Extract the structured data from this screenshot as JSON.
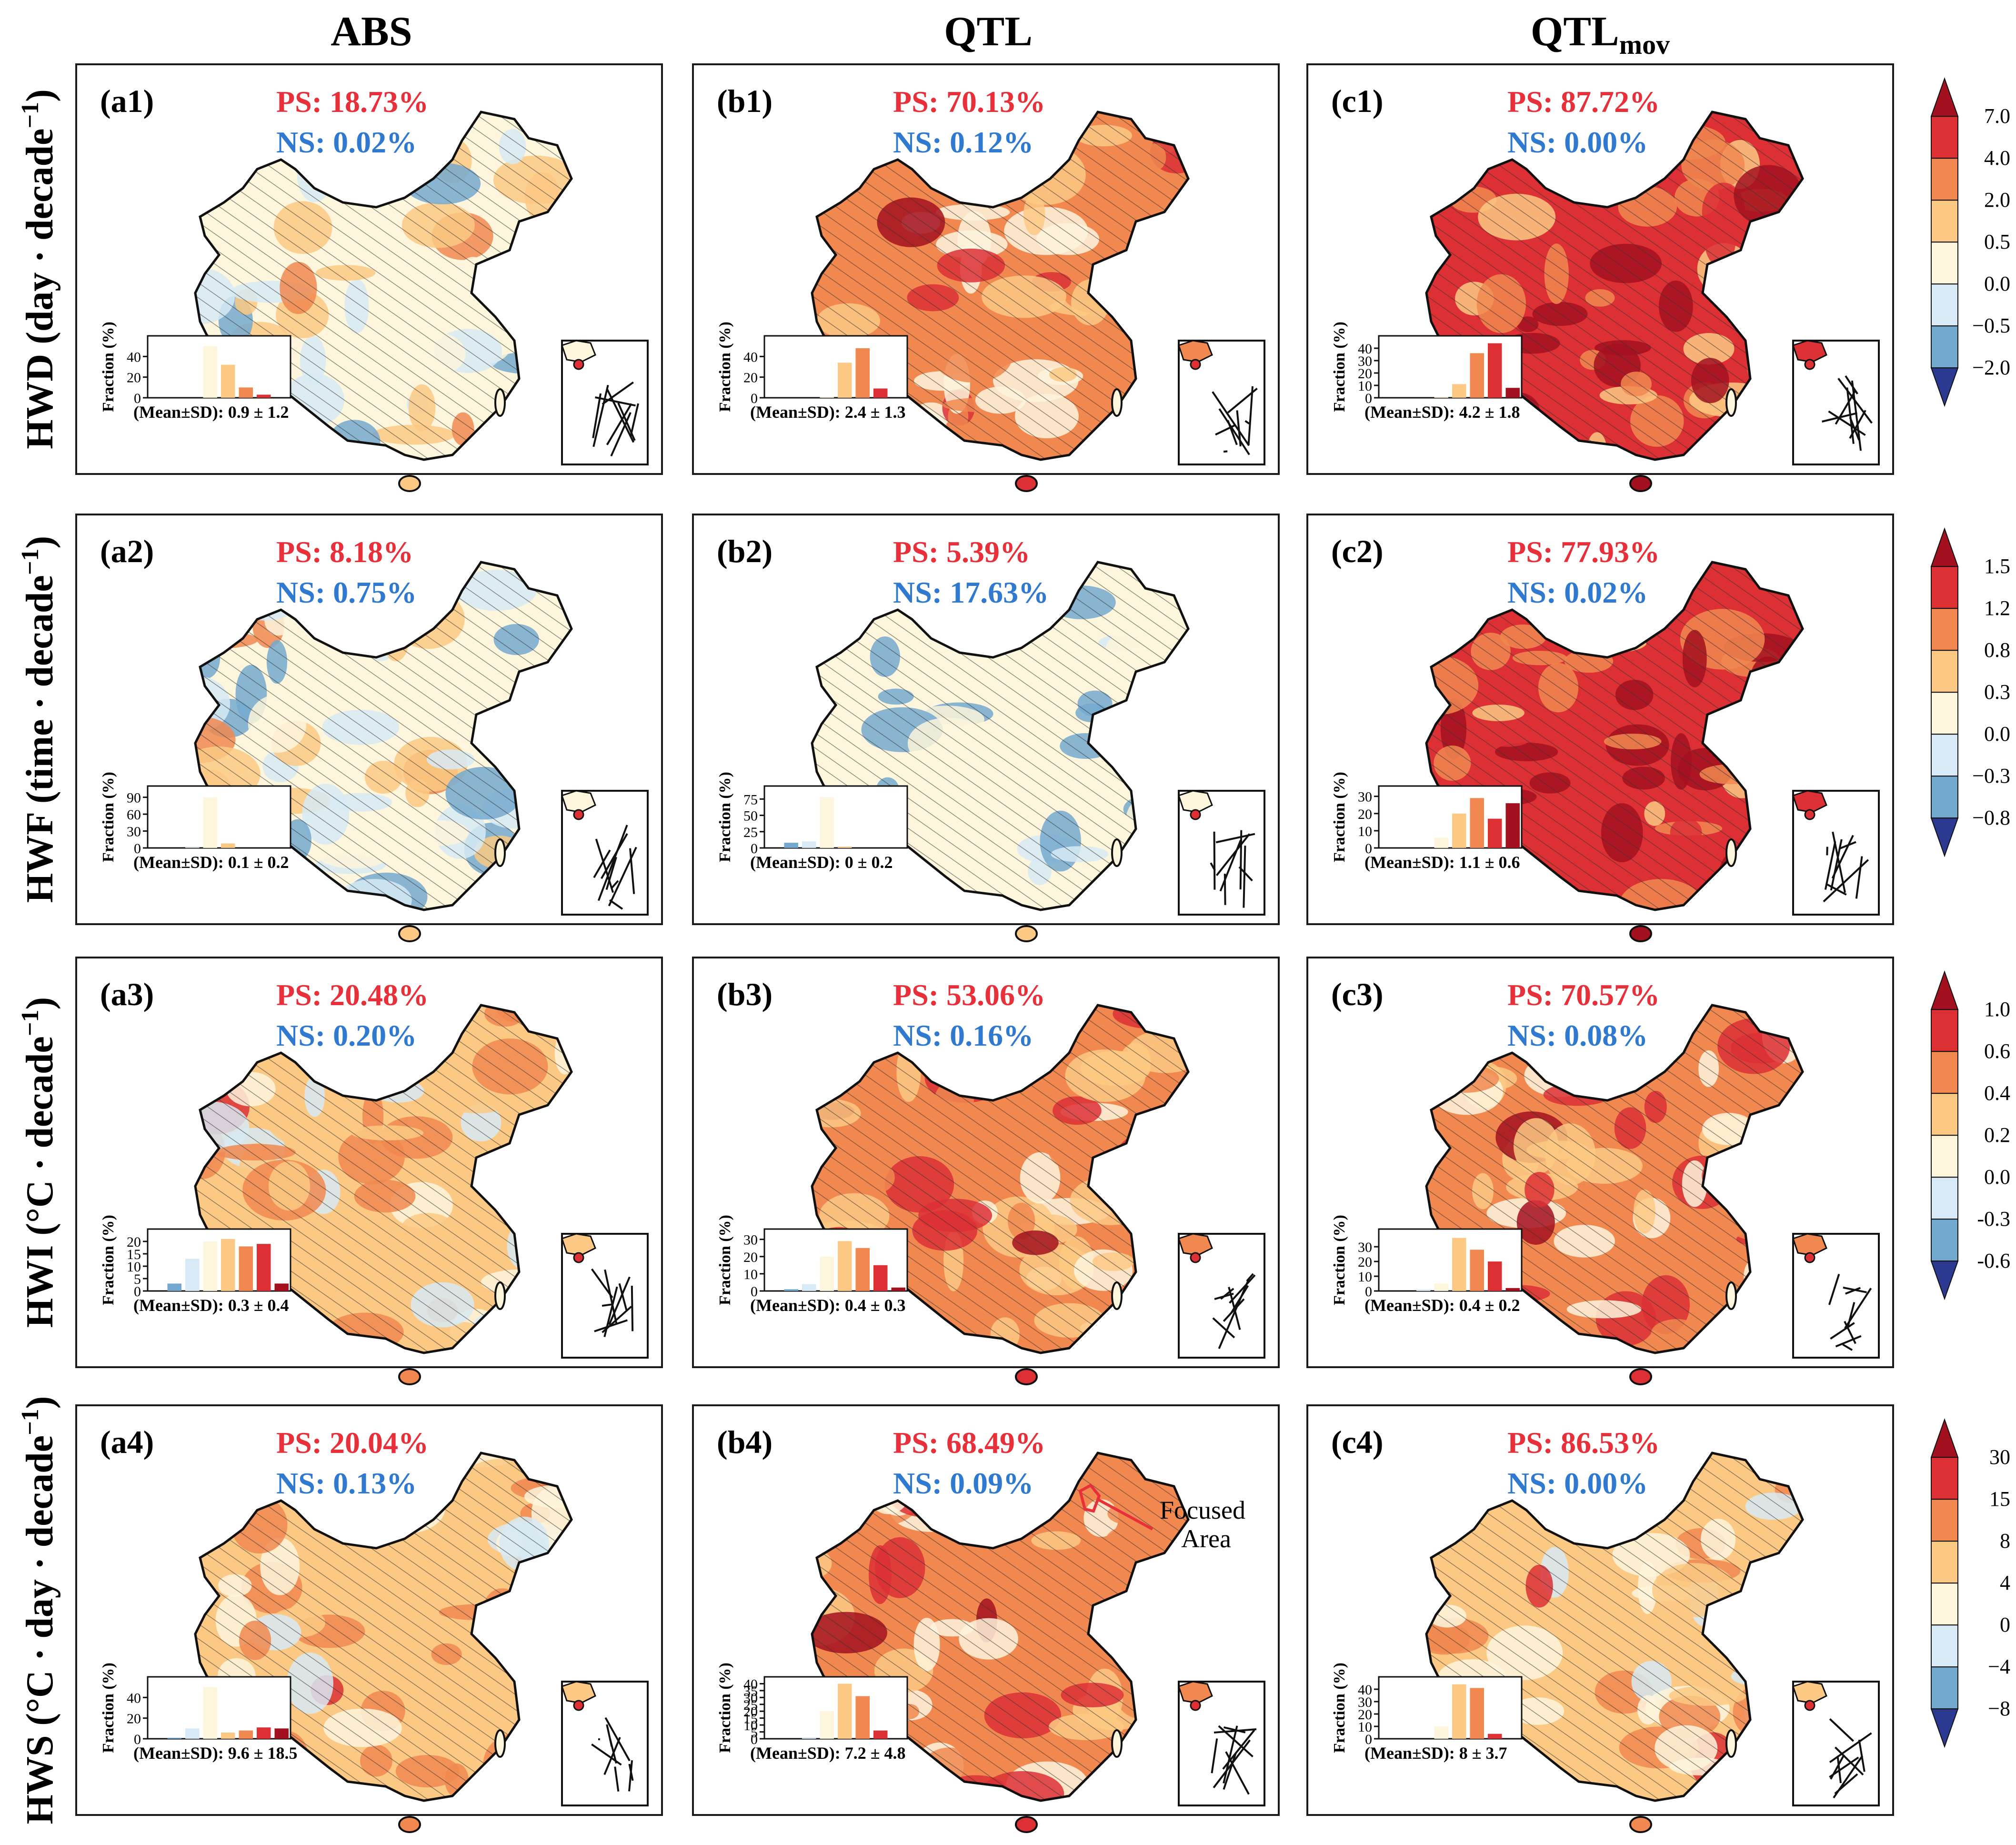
{
  "columns": [
    "ABS",
    "QTL",
    "QTL"
  ],
  "column_subscript": "mov",
  "rows": [
    {
      "prefix": "HWD (day",
      "suffix": ")",
      "unit_tail": " · decade"
    },
    {
      "prefix": "HWF (time",
      "suffix": ")",
      "unit_tail": " · decade"
    },
    {
      "prefix": "HWI (°C",
      "suffix": ")",
      "unit_tail": " · decade"
    },
    {
      "prefix": "HWS (°C · day",
      "suffix": ")",
      "unit_tail": " · decade"
    }
  ],
  "exponent": "−1",
  "hist_ylabel": "Fraction (%)",
  "annotation": {
    "text1": "Focused",
    "text2": "Area"
  },
  "colors": {
    "ps": "#e8303a",
    "ns": "#2f7ad0",
    "hatch": "#333333",
    "border": "#1a1a1a"
  },
  "legends": [
    {
      "ticks": [
        "7.0",
        "4.0",
        "2.0",
        "0.5",
        "0.0",
        "−0.5",
        "−2.0"
      ]
    },
    {
      "ticks": [
        "1.5",
        "1.2",
        "0.8",
        "0.3",
        "0.0",
        "−0.3",
        "−0.8"
      ]
    },
    {
      "ticks": [
        "1.0",
        "0.6",
        "0.4",
        "0.2",
        "0.0",
        "-0.3",
        "-0.6"
      ]
    },
    {
      "ticks": [
        "30",
        "15",
        "8",
        "4",
        "0",
        "−4",
        "−8"
      ]
    }
  ],
  "palette": [
    "#2b3990",
    "#74a9cf",
    "#d7eaf5",
    "#fdf5dc",
    "#fcc984",
    "#f08850",
    "#dc3035",
    "#a3101e"
  ],
  "chart_data": [
    {
      "type": "map-panel",
      "label": "(a1)",
      "ps": "PS: 18.73%",
      "ns": "NS: 0.02%",
      "mean_sd": "(Mean±SD): 0.9 ± 1.2",
      "hist": {
        "yticks": [
          "0",
          "20",
          "40"
        ],
        "ymax": 60,
        "values": [
          0,
          0,
          0,
          50,
          32,
          10,
          3,
          0
        ]
      },
      "intensity": 0.28
    },
    {
      "type": "map-panel",
      "label": "(b1)",
      "ps": "PS: 70.13%",
      "ns": "NS: 0.12%",
      "mean_sd": "(Mean±SD): 2.4 ± 1.3",
      "hist": {
        "yticks": [
          "0",
          "20",
          "40"
        ],
        "ymax": 60,
        "values": [
          0,
          0,
          0,
          1,
          34,
          48,
          9,
          0
        ]
      },
      "intensity": 0.6
    },
    {
      "type": "map-panel",
      "label": "(c1)",
      "ps": "PS: 87.72%",
      "ns": "NS: 0.00%",
      "mean_sd": "(Mean±SD): 4.2 ± 1.8",
      "hist": {
        "yticks": [
          "0",
          "10",
          "20",
          "30",
          "40"
        ],
        "ymax": 50,
        "values": [
          0,
          0,
          0,
          1,
          11,
          36,
          44,
          8
        ]
      },
      "intensity": 0.82
    },
    {
      "type": "map-panel",
      "label": "(a2)",
      "ps": "PS: 8.18%",
      "ns": "NS: 0.75%",
      "mean_sd": "(Mean±SD): 0.1 ± 0.2",
      "hist": {
        "yticks": [
          "0",
          "30",
          "60",
          "90"
        ],
        "ymax": 110,
        "values": [
          0,
          0,
          1,
          90,
          8,
          0,
          0,
          0
        ]
      },
      "intensity": 0.12
    },
    {
      "type": "map-panel",
      "label": "(b2)",
      "ps": "PS: 5.39%",
      "ns": "NS: 17.63%",
      "mean_sd": "(Mean±SD): 0 ± 0.2",
      "hist": {
        "yticks": [
          "0",
          "25",
          "50",
          "75"
        ],
        "ymax": 95,
        "values": [
          0,
          8,
          10,
          78,
          2,
          0,
          0,
          0
        ]
      },
      "intensity": 0.05
    },
    {
      "type": "map-panel",
      "label": "(c2)",
      "ps": "PS: 77.93%",
      "ns": "NS: 0.02%",
      "mean_sd": "(Mean±SD): 1.1 ± 0.6",
      "hist": {
        "yticks": [
          "0",
          "10",
          "20",
          "30"
        ],
        "ymax": 36,
        "values": [
          0,
          0,
          0,
          6,
          20,
          29,
          17,
          26
        ]
      },
      "intensity": 0.88
    },
    {
      "type": "map-panel",
      "label": "(a3)",
      "ps": "PS: 20.48%",
      "ns": "NS: 0.20%",
      "mean_sd": "(Mean±SD): 0.3 ± 0.4",
      "hist": {
        "yticks": [
          "0",
          "5",
          "10",
          "15",
          "20"
        ],
        "ymax": 25,
        "values": [
          0,
          3,
          13,
          20,
          21,
          18,
          19,
          3
        ]
      },
      "intensity": 0.5
    },
    {
      "type": "map-panel",
      "label": "(b3)",
      "ps": "PS: 53.06%",
      "ns": "NS: 0.16%",
      "mean_sd": "(Mean±SD): 0.4 ± 0.3",
      "hist": {
        "yticks": [
          "0",
          "10",
          "20",
          "30"
        ],
        "ymax": 36,
        "values": [
          0,
          1,
          4,
          20,
          29,
          25,
          15,
          2
        ]
      },
      "intensity": 0.58
    },
    {
      "type": "map-panel",
      "label": "(c3)",
      "ps": "PS: 70.57%",
      "ns": "NS: 0.08%",
      "mean_sd": "(Mean±SD): 0.4 ± 0.2",
      "hist": {
        "yticks": [
          "0",
          "10",
          "20",
          "30"
        ],
        "ymax": 42,
        "values": [
          0,
          0,
          1,
          5,
          36,
          28,
          20,
          2
        ]
      },
      "intensity": 0.62
    },
    {
      "type": "map-panel",
      "label": "(a4)",
      "ps": "PS: 20.04%",
      "ns": "NS: 0.13%",
      "mean_sd": "(Mean±SD): 9.6 ± 18.5",
      "hist": {
        "yticks": [
          "0",
          "20",
          "40"
        ],
        "ymax": 60,
        "values": [
          0,
          1,
          10,
          50,
          6,
          8,
          11,
          10
        ]
      },
      "intensity": 0.45
    },
    {
      "type": "map-panel",
      "label": "(b4)",
      "ps": "PS: 68.49%",
      "ns": "NS: 0.09%",
      "mean_sd": "(Mean±SD): 7.2 ± 4.8",
      "hist": {
        "yticks": [
          "0",
          "5",
          "10",
          "15",
          "20",
          "25",
          "30",
          "35",
          "40"
        ],
        "ymax": 45,
        "values": [
          0,
          0,
          1,
          20,
          40,
          31,
          6,
          0
        ]
      },
      "intensity": 0.55
    },
    {
      "type": "map-panel",
      "label": "(c4)",
      "ps": "PS: 86.53%",
      "ns": "NS: 0.00%",
      "mean_sd": "(Mean±SD): 8 ± 3.7",
      "hist": {
        "yticks": [
          "0",
          "10",
          "20",
          "30",
          "40"
        ],
        "ymax": 50,
        "values": [
          0,
          0,
          0,
          10,
          44,
          41,
          4,
          0
        ]
      },
      "intensity": 0.5
    }
  ]
}
